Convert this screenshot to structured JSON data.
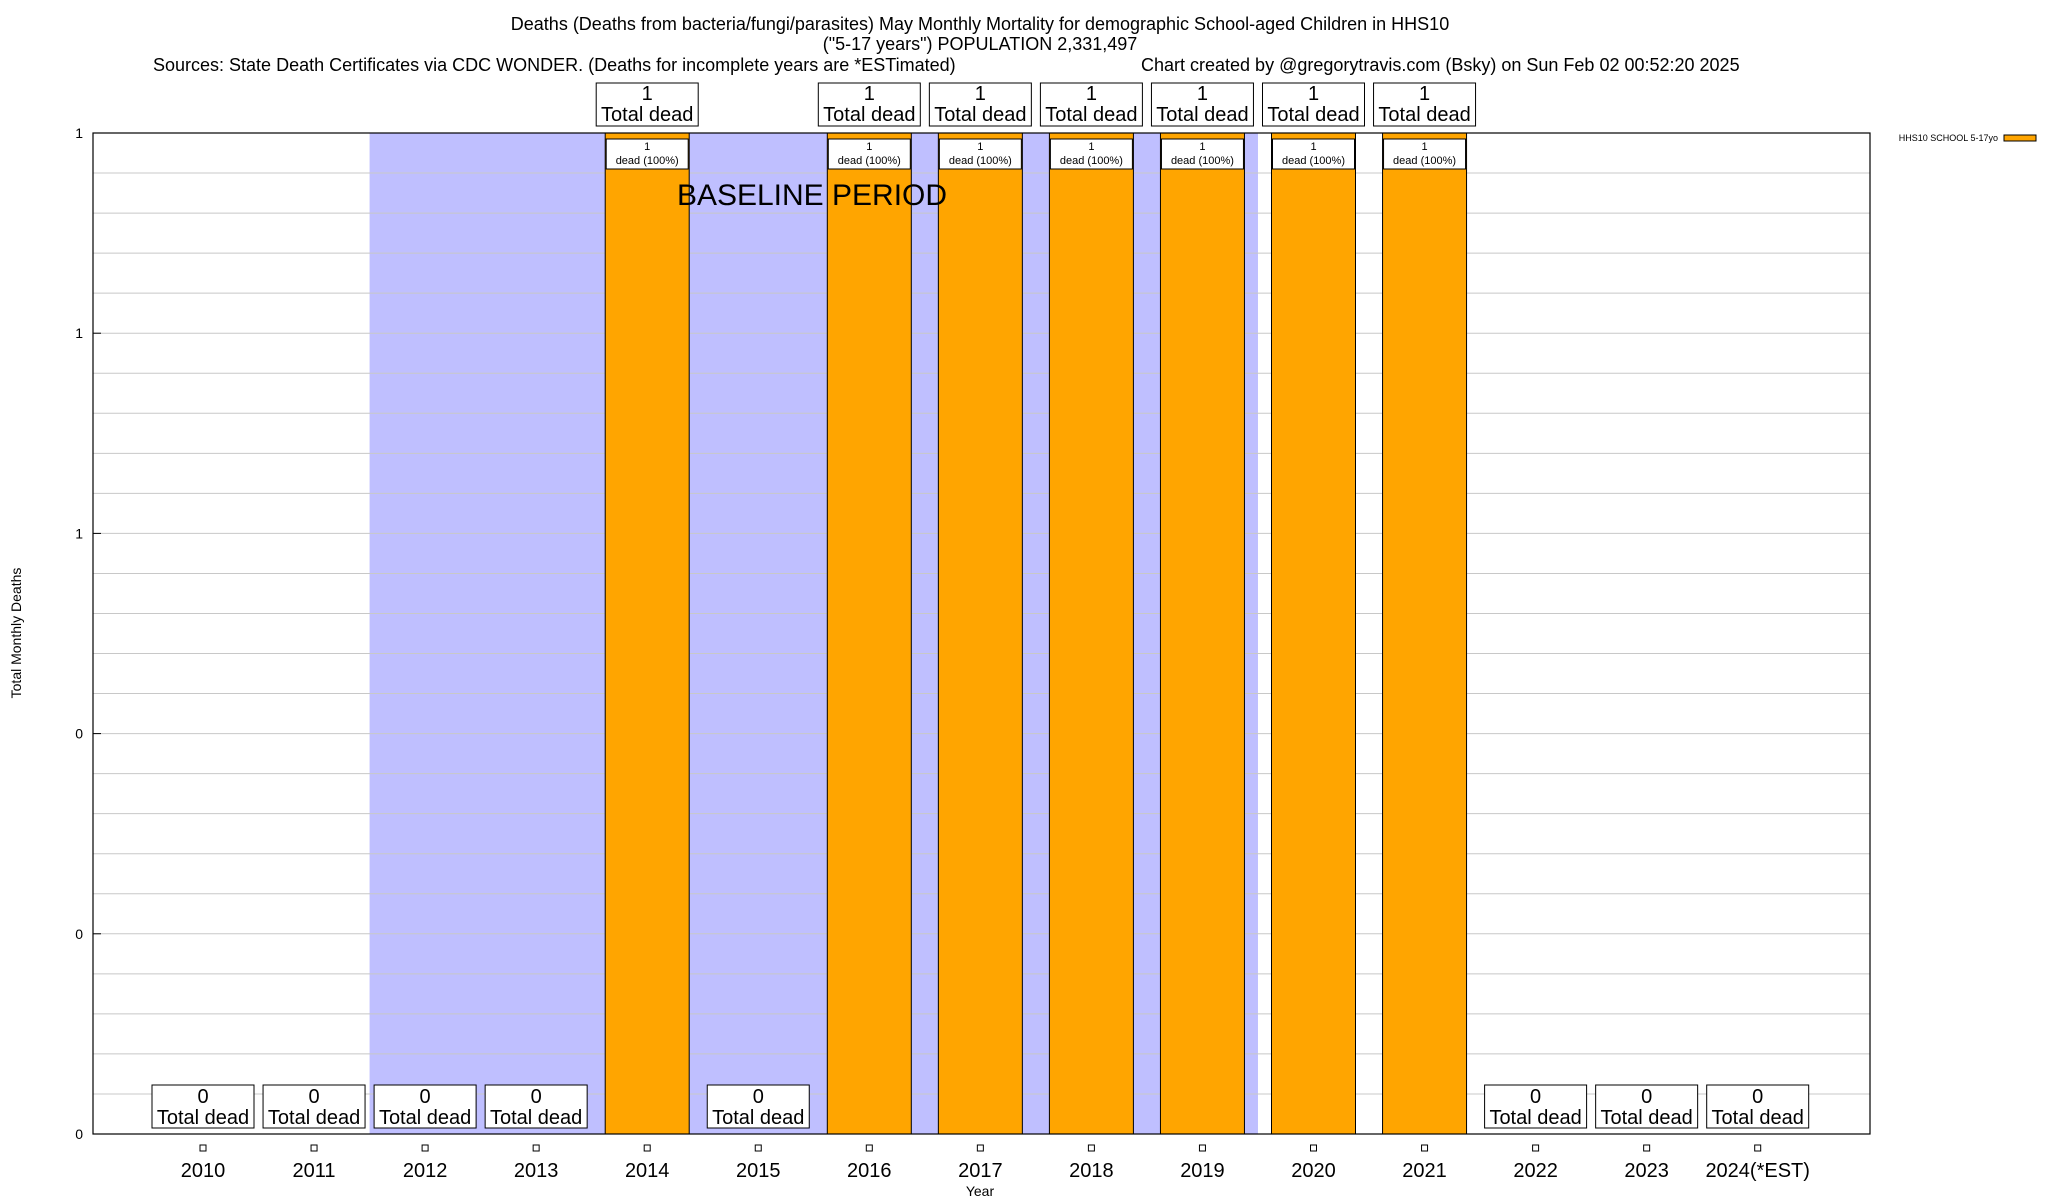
{
  "chart_data": {
    "type": "bar",
    "title_lines": [
      "Deaths (Deaths from bacteria/fungi/parasites) May Monthly Mortality for demographic School-aged Children in HHS10",
      "(\"5-17 years\") POPULATION 2,331,497"
    ],
    "sources": "Sources: State Death Certificates via CDC WONDER. (Deaths for incomplete years are *ESTimated)",
    "credit": "Chart created by @gregorytravis.com (Bsky) on Sun Feb 02 00:52:20 2025",
    "xlabel": "Year",
    "ylabel": "Total Monthly Deaths",
    "ylim": [
      0,
      1
    ],
    "y_tick_labels": [
      "0",
      "0",
      "0",
      "1",
      "1",
      "1"
    ],
    "legend": {
      "label": "HHS10 SCHOOL 5-17yo",
      "position": "top-right"
    },
    "baseline_label": "BASELINE PERIOD",
    "baseline_years": [
      "2012",
      "2013",
      "2014",
      "2015",
      "2016",
      "2017",
      "2018",
      "2019"
    ],
    "categories": [
      "2010",
      "2011",
      "2012",
      "2013",
      "2014",
      "2015",
      "2016",
      "2017",
      "2018",
      "2019",
      "2020",
      "2021",
      "2022",
      "2023",
      "2024(*EST)"
    ],
    "series": [
      {
        "name": "HHS10 SCHOOL 5-17yo",
        "values": [
          0,
          0,
          0,
          0,
          1,
          0,
          1,
          1,
          1,
          1,
          1,
          1,
          0,
          0,
          0
        ]
      }
    ],
    "total_label": "Total dead",
    "bar_label": "dead (100%)",
    "grid": true,
    "colors": {
      "bar": "#FFA500",
      "baseline": "#BFBFFF",
      "grid": "#C8C8C8"
    }
  }
}
